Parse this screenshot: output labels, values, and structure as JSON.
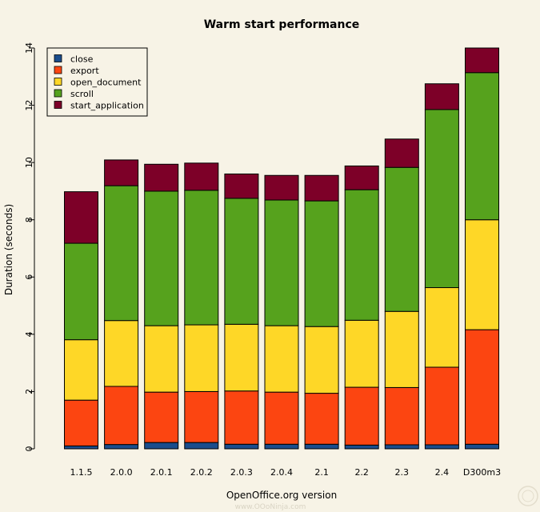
{
  "chart_data": {
    "type": "bar",
    "stacked": true,
    "title": "Warm start performance",
    "xlabel": "OpenOffice.org version",
    "ylabel": "Duration (seconds)",
    "ylim": [
      0,
      14
    ],
    "yticks": [
      0,
      2,
      4,
      6,
      8,
      10,
      12,
      14
    ],
    "grid": false,
    "legend_position": "top-left",
    "categories": [
      "1.1.5",
      "2.0.0",
      "2.0.1",
      "2.0.2",
      "2.0.3",
      "2.0.4",
      "2.1",
      "2.2",
      "2.3",
      "2.4",
      "D300m3"
    ],
    "series": [
      {
        "name": "close",
        "color": "#1a4d8c",
        "values": [
          0.1,
          0.15,
          0.22,
          0.22,
          0.16,
          0.16,
          0.16,
          0.13,
          0.14,
          0.14,
          0.16
        ]
      },
      {
        "name": "export",
        "color": "#fc4511",
        "values": [
          1.6,
          2.03,
          1.76,
          1.78,
          1.86,
          1.82,
          1.78,
          2.02,
          2.0,
          2.71,
          4.0
        ]
      },
      {
        "name": "open_document",
        "color": "#fed727",
        "values": [
          2.11,
          2.3,
          2.32,
          2.33,
          2.33,
          2.32,
          2.33,
          2.34,
          2.66,
          2.78,
          3.84
        ]
      },
      {
        "name": "scroll",
        "color": "#56a21d",
        "values": [
          3.37,
          4.71,
          4.7,
          4.7,
          4.4,
          4.39,
          4.39,
          4.56,
          5.03,
          6.22,
          5.14
        ]
      },
      {
        "name": "start_application",
        "color": "#7d0028",
        "values": [
          1.8,
          0.9,
          0.94,
          0.95,
          0.85,
          0.86,
          0.89,
          0.83,
          0.99,
          0.9,
          0.86
        ]
      }
    ]
  },
  "watermark": "www.OOoNinja.com"
}
